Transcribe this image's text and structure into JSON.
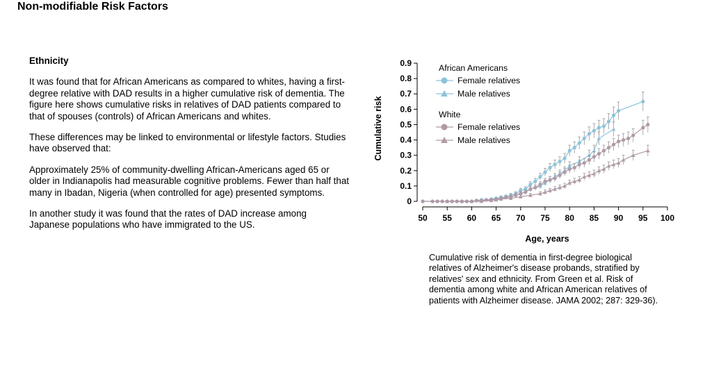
{
  "page": {
    "title": "Non-modifiable Risk Factors"
  },
  "section": {
    "heading": "Ethnicity",
    "paragraphs": [
      "It was found that for African Americans as compared to whites, having a first-degree relative with DAD results in a higher cumulative risk of dementia. The figure here shows cumulative risks in relatives of DAD patients compared to that of spouses (controls) of African Americans and whites.",
      "These differences may be linked to environmental or lifestyle factors. Studies have observed that:",
      "Approximately 25% of community-dwelling African-Americans aged 65 or older in Indianapolis had measurable cognitive problems. Fewer than half that many in Ibadan, Nigeria (when controlled for age) presented symptoms.",
      "In another study it was found that the rates of DAD increase among Japanese populations who have immigrated to the US."
    ]
  },
  "caption": "Cumulative risk of dementia in first-degree biological relatives of Alzheimer's disease probands, stratified by relatives' sex and ethnicity. From Green et al. Risk of dementia among white and African American relatives of patients with Alzheimer disease. JAMA 2002; 287: 329-36).",
  "chart_data": {
    "type": "line",
    "xlabel": "Age, years",
    "ylabel": "Cumulative risk",
    "xlim": [
      50,
      100
    ],
    "ylim": [
      0,
      0.9
    ],
    "xticks": [
      50,
      55,
      60,
      65,
      70,
      75,
      80,
      85,
      90,
      95,
      100
    ],
    "yticks": [
      0,
      0.1,
      0.2,
      0.3,
      0.4,
      0.5,
      0.6,
      0.7,
      0.8,
      0.9
    ],
    "grid": false,
    "legend_placement": "top-left",
    "legend_groups": [
      {
        "title": "African Americans",
        "series": [
          0,
          1
        ]
      },
      {
        "title": "White",
        "series": [
          2,
          3
        ]
      }
    ],
    "series": [
      {
        "name": "Female relatives",
        "color": "#8ec3da",
        "marker": "circle",
        "x": [
          50,
          52,
          53,
          54,
          55,
          56,
          57,
          58,
          59,
          60,
          61,
          62,
          63,
          64,
          65,
          66,
          67,
          68,
          69,
          70,
          71,
          72,
          73,
          74,
          75,
          76,
          77,
          78,
          79,
          80,
          81,
          82,
          83,
          84,
          85,
          86,
          87,
          88,
          89,
          90,
          95
        ],
        "y": [
          0,
          0,
          0,
          0,
          0,
          0,
          0,
          0,
          0,
          0,
          0.005,
          0.01,
          0.01,
          0.015,
          0.02,
          0.025,
          0.03,
          0.04,
          0.05,
          0.07,
          0.08,
          0.11,
          0.13,
          0.16,
          0.19,
          0.22,
          0.24,
          0.26,
          0.28,
          0.33,
          0.35,
          0.38,
          0.41,
          0.44,
          0.46,
          0.48,
          0.49,
          0.52,
          0.56,
          0.59,
          0.65
        ]
      },
      {
        "name": "Male relatives",
        "color": "#8ec3da",
        "marker": "triangle",
        "x": [
          55,
          60,
          65,
          68,
          70,
          72,
          74,
          75,
          76,
          77,
          78,
          79,
          80,
          82,
          84,
          85,
          86,
          89
        ],
        "y": [
          0,
          0,
          0.01,
          0.03,
          0.05,
          0.08,
          0.1,
          0.12,
          0.14,
          0.16,
          0.18,
          0.2,
          0.23,
          0.26,
          0.3,
          0.33,
          0.41,
          0.47
        ]
      },
      {
        "name": "Female relatives",
        "color": "#b09aa6",
        "marker": "circle",
        "x": [
          50,
          52,
          53,
          54,
          55,
          56,
          57,
          58,
          59,
          60,
          61,
          62,
          63,
          64,
          65,
          66,
          67,
          68,
          69,
          70,
          71,
          72,
          73,
          74,
          75,
          76,
          77,
          78,
          79,
          80,
          81,
          82,
          83,
          84,
          85,
          86,
          87,
          88,
          89,
          90,
          91,
          92,
          93,
          95,
          96
        ],
        "y": [
          0,
          0,
          0,
          0,
          0,
          0,
          0,
          0,
          0,
          0,
          0.005,
          0.005,
          0.01,
          0.01,
          0.015,
          0.02,
          0.025,
          0.03,
          0.04,
          0.05,
          0.06,
          0.08,
          0.09,
          0.11,
          0.13,
          0.14,
          0.15,
          0.17,
          0.19,
          0.21,
          0.22,
          0.24,
          0.25,
          0.27,
          0.29,
          0.31,
          0.33,
          0.35,
          0.37,
          0.39,
          0.4,
          0.41,
          0.43,
          0.48,
          0.5
        ]
      },
      {
        "name": "Male relatives",
        "color": "#b09aa6",
        "marker": "triangle",
        "x": [
          55,
          58,
          60,
          62,
          64,
          65,
          66,
          68,
          70,
          72,
          74,
          75,
          76,
          77,
          78,
          79,
          80,
          81,
          82,
          83,
          84,
          85,
          86,
          87,
          88,
          89,
          90,
          91,
          93,
          96
        ],
        "y": [
          0,
          0,
          0,
          0,
          0.005,
          0.01,
          0.015,
          0.02,
          0.03,
          0.04,
          0.05,
          0.06,
          0.07,
          0.08,
          0.09,
          0.1,
          0.12,
          0.13,
          0.14,
          0.16,
          0.17,
          0.18,
          0.2,
          0.21,
          0.23,
          0.24,
          0.25,
          0.27,
          0.3,
          0.33
        ]
      }
    ]
  }
}
